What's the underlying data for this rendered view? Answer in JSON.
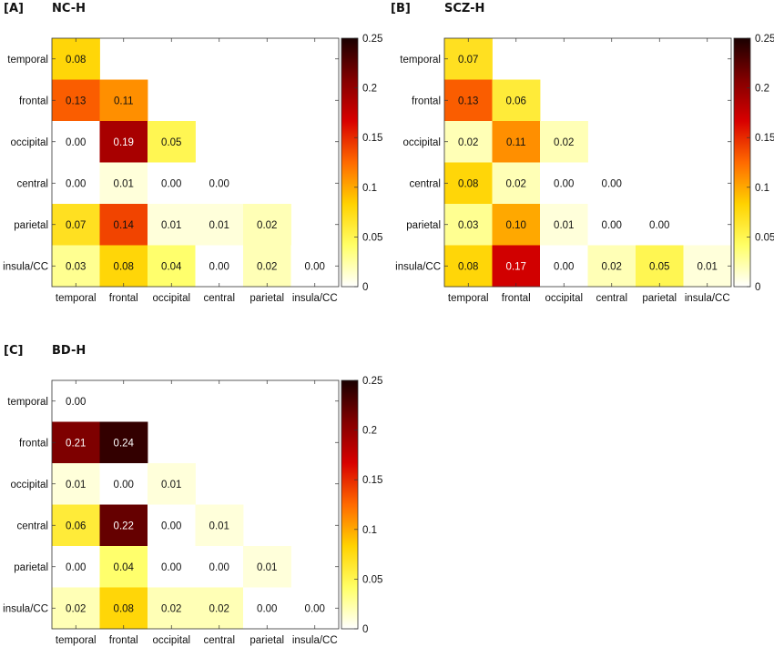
{
  "figure": {
    "color_scale": {
      "name": "hot (reversed)",
      "stops": [
        "#ffffff",
        "#ffff66",
        "#ffd200",
        "#ff6a00",
        "#d80000",
        "#820000",
        "#1a0000"
      ],
      "range": [
        0,
        0.25
      ],
      "ticks": [
        "0",
        "0.05",
        "0.1",
        "0.15",
        "0.2",
        "0.25"
      ]
    }
  },
  "chart_data": [
    {
      "type": "heatmap",
      "panel_tag": "[A]",
      "title": "NC-H",
      "rows": [
        "temporal",
        "frontal",
        "occipital",
        "central",
        "parietal",
        "insula/CC"
      ],
      "columns": [
        "temporal",
        "frontal",
        "occipital",
        "central",
        "parietal",
        "insula/CC"
      ],
      "values": [
        [
          0.08,
          null,
          null,
          null,
          null,
          null
        ],
        [
          0.13,
          0.11,
          null,
          null,
          null,
          null
        ],
        [
          0.0,
          0.19,
          0.05,
          null,
          null,
          null
        ],
        [
          0.0,
          0.01,
          0.0,
          0.0,
          null,
          null
        ],
        [
          0.07,
          0.14,
          0.01,
          0.01,
          0.02,
          null
        ],
        [
          0.03,
          0.08,
          0.04,
          0.0,
          0.02,
          0.0
        ]
      ],
      "labels": [
        [
          "0.08"
        ],
        [
          "0.13",
          "0.11"
        ],
        [
          "0.00",
          "0.19",
          "0.05"
        ],
        [
          "0.00",
          "0.01",
          "0.00",
          "0.00"
        ],
        [
          "0.07",
          "0.14",
          "0.01",
          "0.01",
          "0.02"
        ],
        [
          "0.03",
          "0.08",
          "0.04",
          "0.00",
          "0.02",
          "0.00"
        ]
      ],
      "colorbar": {
        "range": [
          0,
          0.25
        ],
        "ticks": [
          "0",
          "0.05",
          "0.1",
          "0.15",
          "0.2",
          "0.25"
        ]
      }
    },
    {
      "type": "heatmap",
      "panel_tag": "[B]",
      "title": "SCZ-H",
      "rows": [
        "temporal",
        "frontal",
        "occipital",
        "central",
        "parietal",
        "insula/CC"
      ],
      "columns": [
        "temporal",
        "frontal",
        "occipital",
        "central",
        "parietal",
        "insula/CC"
      ],
      "values": [
        [
          0.07,
          null,
          null,
          null,
          null,
          null
        ],
        [
          0.13,
          0.06,
          null,
          null,
          null,
          null
        ],
        [
          0.02,
          0.11,
          0.02,
          null,
          null,
          null
        ],
        [
          0.08,
          0.02,
          0.0,
          0.0,
          null,
          null
        ],
        [
          0.03,
          0.1,
          0.01,
          0.0,
          0.0,
          null
        ],
        [
          0.08,
          0.17,
          0.0,
          0.02,
          0.05,
          0.01
        ]
      ],
      "labels": [
        [
          "0.07"
        ],
        [
          "0.13",
          "0.06"
        ],
        [
          "0.02",
          "0.11",
          "0.02"
        ],
        [
          "0.08",
          "0.02",
          "0.00",
          "0.00"
        ],
        [
          "0.03",
          "0.10",
          "0.01",
          "0.00",
          "0.00"
        ],
        [
          "0.08",
          "0.17",
          "0.00",
          "0.02",
          "0.05",
          "0.01"
        ]
      ],
      "colorbar": {
        "range": [
          0,
          0.25
        ],
        "ticks": [
          "0",
          "0.05",
          "0.1",
          "0.15",
          "0.2",
          "0.25"
        ]
      }
    },
    {
      "type": "heatmap",
      "panel_tag": "[C]",
      "title": "BD-H",
      "rows": [
        "temporal",
        "frontal",
        "occipital",
        "central",
        "parietal",
        "insula/CC"
      ],
      "columns": [
        "temporal",
        "frontal",
        "occipital",
        "central",
        "parietal",
        "insula/CC"
      ],
      "values": [
        [
          0.0,
          null,
          null,
          null,
          null,
          null
        ],
        [
          0.21,
          0.24,
          null,
          null,
          null,
          null
        ],
        [
          0.01,
          0.0,
          0.01,
          null,
          null,
          null
        ],
        [
          0.06,
          0.22,
          0.0,
          0.01,
          null,
          null
        ],
        [
          0.0,
          0.04,
          0.0,
          0.0,
          0.01,
          null
        ],
        [
          0.02,
          0.08,
          0.02,
          0.02,
          0.0,
          0.0
        ]
      ],
      "labels": [
        [
          "0.00"
        ],
        [
          "0.21",
          "0.24"
        ],
        [
          "0.01",
          "0.00",
          "0.01"
        ],
        [
          "0.06",
          "0.22",
          "0.00",
          "0.01"
        ],
        [
          "0.00",
          "0.04",
          "0.00",
          "0.00",
          "0.01"
        ],
        [
          "0.02",
          "0.08",
          "0.02",
          "0.02",
          "0.00",
          "0.00"
        ]
      ],
      "colorbar": {
        "range": [
          0,
          0.25
        ],
        "ticks": [
          "0",
          "0.05",
          "0.1",
          "0.15",
          "0.2",
          "0.25"
        ]
      }
    }
  ]
}
